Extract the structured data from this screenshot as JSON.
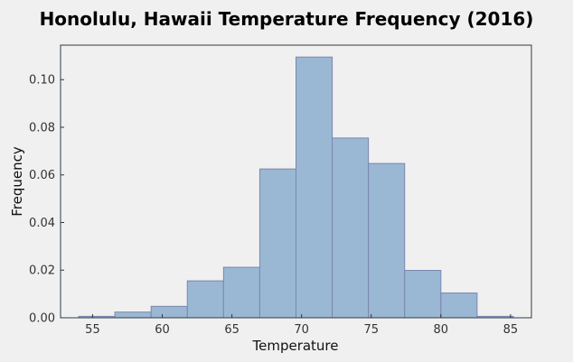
{
  "chart_data": {
    "type": "bar",
    "title": "Honolulu, Hawaii Temperature Frequency (2016)",
    "xlabel": "Temperature",
    "ylabel": "Frequency",
    "xlim": [
      52.7,
      86.5
    ],
    "ylim": [
      0,
      0.1145
    ],
    "xticks": [
      55,
      60,
      65,
      70,
      75,
      80,
      85
    ],
    "yticks": [
      0.0,
      0.02,
      0.04,
      0.06,
      0.08,
      0.1
    ],
    "ytick_labels": [
      "0.00",
      "0.02",
      "0.04",
      "0.06",
      "0.08",
      "0.10"
    ],
    "bins": [
      {
        "x0": 54.0,
        "x1": 56.6,
        "value": 0.0006
      },
      {
        "x0": 56.6,
        "x1": 59.2,
        "value": 0.0024
      },
      {
        "x0": 59.2,
        "x1": 61.8,
        "value": 0.0048
      },
      {
        "x0": 61.8,
        "x1": 64.4,
        "value": 0.0155
      },
      {
        "x0": 64.4,
        "x1": 67.0,
        "value": 0.0212
      },
      {
        "x0": 67.0,
        "x1": 69.6,
        "value": 0.0625
      },
      {
        "x0": 69.6,
        "x1": 72.2,
        "value": 0.1095
      },
      {
        "x0": 72.2,
        "x1": 74.8,
        "value": 0.0755
      },
      {
        "x0": 74.8,
        "x1": 77.4,
        "value": 0.0648
      },
      {
        "x0": 77.4,
        "x1": 80.0,
        "value": 0.0199
      },
      {
        "x0": 80.0,
        "x1": 82.6,
        "value": 0.0104
      },
      {
        "x0": 82.6,
        "x1": 85.2,
        "value": 0.0006
      }
    ]
  }
}
